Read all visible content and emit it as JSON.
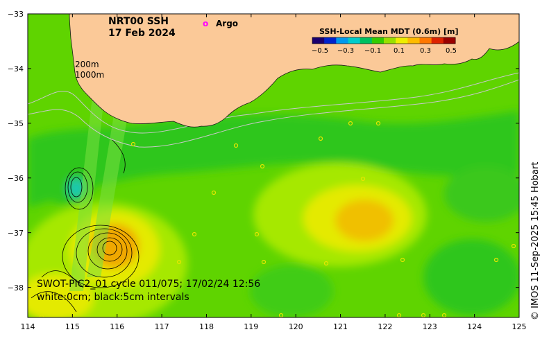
{
  "title": {
    "line1": "NRT00 SSH",
    "line2": "17 Feb 2024"
  },
  "argo_legend": {
    "symbol": "o",
    "label": "Argo",
    "color": "#ff00ff"
  },
  "isobaths": {
    "label_200": "200m",
    "label_1000": "1000m"
  },
  "colorbar": {
    "title": "SSH-Local Mean MDT (0.6m) [m]",
    "ticks": [
      "−0.5",
      "−0.3",
      "−0.1",
      "0.1",
      "0.3",
      "0.5"
    ],
    "colors": [
      "#1a006e",
      "#0022cc",
      "#0099ee",
      "#00cccc",
      "#00c060",
      "#33cc00",
      "#99e000",
      "#eeee00",
      "#ffbb00",
      "#ff7700",
      "#dd2200",
      "#990000"
    ]
  },
  "swot": {
    "line1": "SWOT-PIC2_01 cycle 011/075; 17/02/24 12:56",
    "line2": "white:0cm; black:5cm intervals"
  },
  "axes": {
    "x_ticks": [
      "114",
      "115",
      "116",
      "117",
      "118",
      "119",
      "120",
      "121",
      "122",
      "123",
      "124",
      "125"
    ],
    "y_ticks": [
      "−33",
      "−34",
      "−35",
      "−36",
      "−37",
      "−38"
    ],
    "x_range": [
      114,
      125
    ],
    "y_range": [
      -38.55,
      -33
    ]
  },
  "copyright": "© IMOS 11-Sep-2025 15:45 Hobart",
  "palette": {
    "land": "#fbc998",
    "ocean_base": "#5fd400",
    "ssh_green": "#2ec61e",
    "ssh_yellow_green": "#a6e800",
    "ssh_yellow": "#e4ea00",
    "ssh_orange": "#f0a800",
    "ssh_cyan": "#1bc9b0"
  }
}
